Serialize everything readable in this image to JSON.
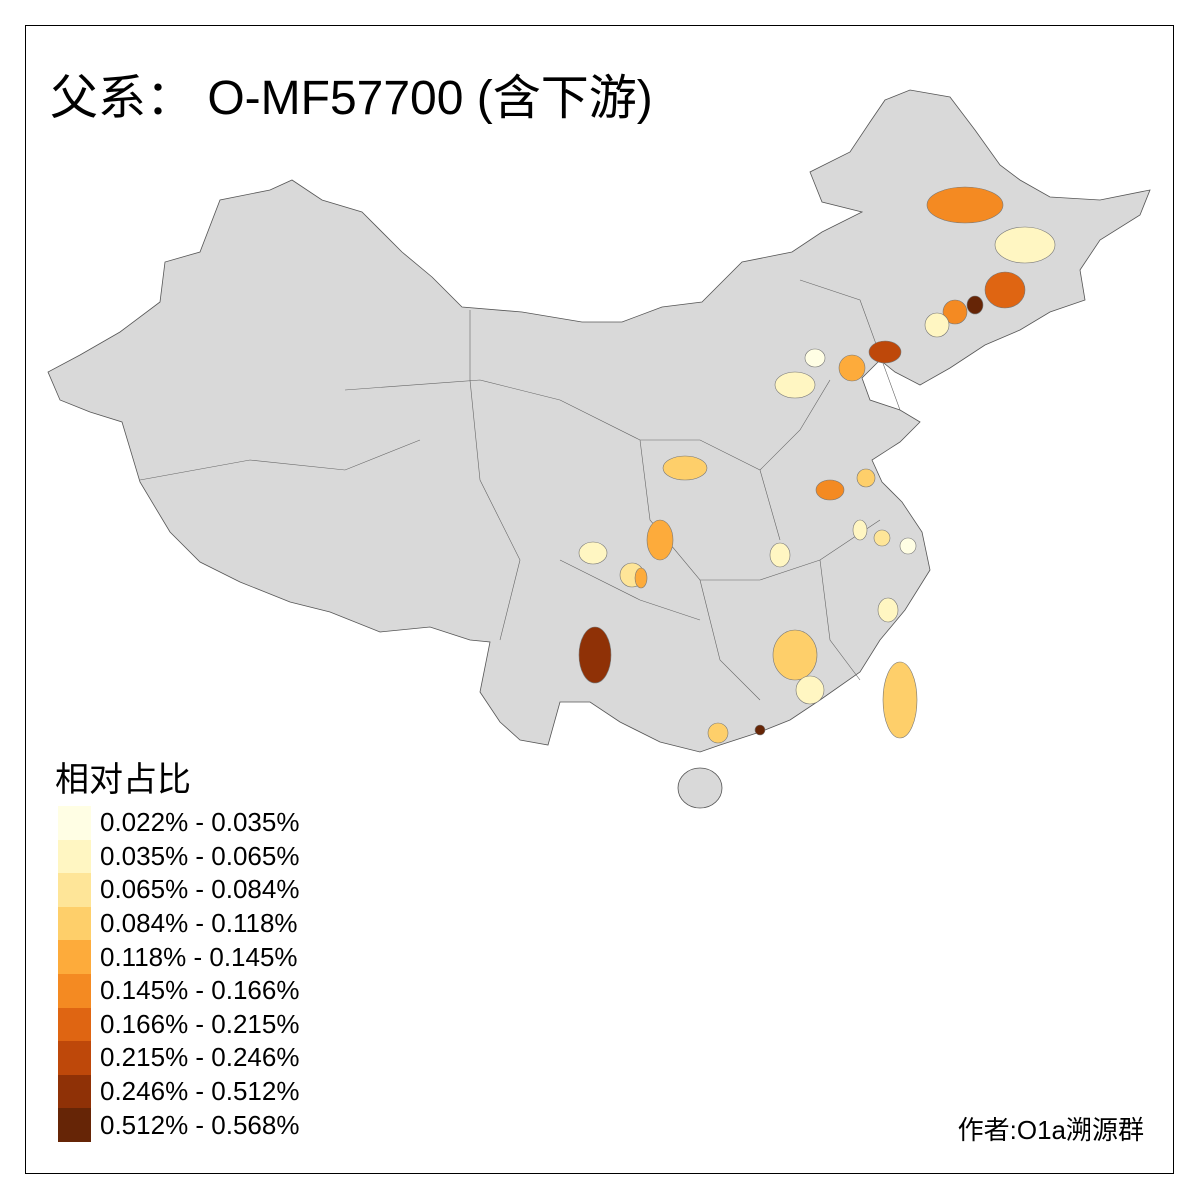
{
  "title": "父系： O-MF57700 (含下游)",
  "legend": {
    "title": "相对占比",
    "classes": [
      {
        "label": "0.022% - 0.035%",
        "color": "#FFFEE4"
      },
      {
        "label": "0.035% - 0.065%",
        "color": "#FFF6C2"
      },
      {
        "label": "0.065% - 0.084%",
        "color": "#FEE598"
      },
      {
        "label": "0.084% - 0.118%",
        "color": "#FECF6A"
      },
      {
        "label": "0.118% - 0.145%",
        "color": "#FDAB3B"
      },
      {
        "label": "0.145% - 0.166%",
        "color": "#F48A22"
      },
      {
        "label": "0.166% - 0.215%",
        "color": "#DF6512"
      },
      {
        "label": "0.215% - 0.246%",
        "color": "#BE480A"
      },
      {
        "label": "0.246% - 0.512%",
        "color": "#8F3106"
      },
      {
        "label": "0.512% - 0.568%",
        "color": "#662506"
      }
    ]
  },
  "base_color": "#D9D9D9",
  "regions": [
    {
      "class": 5
    },
    {
      "class": 1
    },
    {
      "class": 6
    },
    {
      "class": 9
    },
    {
      "class": 5
    },
    {
      "class": 1
    },
    {
      "class": 7
    },
    {
      "class": 4
    },
    {
      "class": 0
    },
    {
      "class": 1
    },
    {
      "class": 3
    },
    {
      "class": 5
    },
    {
      "class": 3
    },
    {
      "class": 1
    },
    {
      "class": 2
    },
    {
      "class": 0
    },
    {
      "class": 4
    },
    {
      "class": 2
    },
    {
      "class": 4
    },
    {
      "class": 1
    },
    {
      "class": 1
    },
    {
      "class": 1
    },
    {
      "class": 8
    },
    {
      "class": 3
    },
    {
      "class": 1
    },
    {
      "class": 3
    },
    {
      "class": 9
    },
    {
      "class": 3
    }
  ],
  "credit": "作者:O1a溯源群"
}
